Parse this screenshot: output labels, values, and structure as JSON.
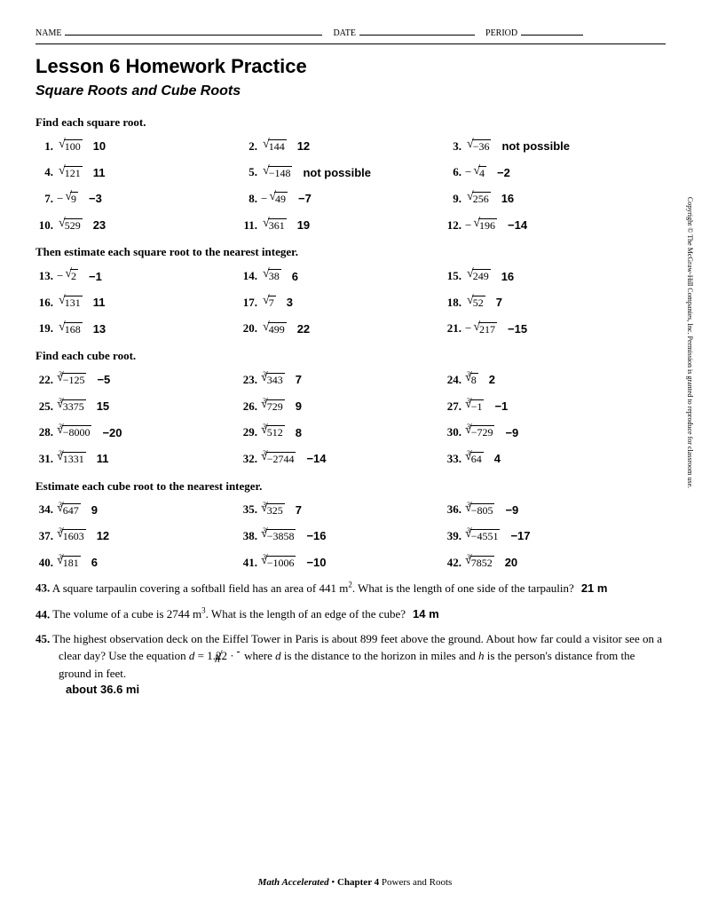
{
  "header": {
    "name": "NAME",
    "date": "DATE",
    "period": "PERIOD"
  },
  "title": "Lesson 6 Homework Practice",
  "subtitle": "Square Roots and Cube Roots",
  "sections": [
    {
      "head": "Find each square root.",
      "items": [
        {
          "n": "1.",
          "pre": "",
          "idx": "",
          "arg": "100",
          "ans": "10"
        },
        {
          "n": "2.",
          "pre": "",
          "idx": "",
          "arg": "144",
          "ans": "12"
        },
        {
          "n": "3.",
          "pre": "",
          "idx": "",
          "arg": "−36",
          "ans": "not possible"
        },
        {
          "n": "4.",
          "pre": "",
          "idx": "",
          "arg": "121",
          "ans": "11"
        },
        {
          "n": "5.",
          "pre": "",
          "idx": "",
          "arg": "−148",
          "ans": "not possible"
        },
        {
          "n": "6.",
          "pre": "−",
          "idx": "",
          "arg": "4",
          "ans": "−2"
        },
        {
          "n": "7.",
          "pre": "−",
          "idx": "",
          "arg": "9",
          "ans": "−3"
        },
        {
          "n": "8.",
          "pre": "−",
          "idx": "",
          "arg": "49",
          "ans": "−7"
        },
        {
          "n": "9.",
          "pre": "",
          "idx": "",
          "arg": "256",
          "ans": "16"
        },
        {
          "n": "10.",
          "pre": "",
          "idx": "",
          "arg": "529",
          "ans": "23"
        },
        {
          "n": "11.",
          "pre": "",
          "idx": "",
          "arg": "361",
          "ans": "19"
        },
        {
          "n": "12.",
          "pre": "−",
          "idx": "",
          "arg": "196",
          "ans": "−14"
        }
      ]
    },
    {
      "head": "Then estimate each square root to the nearest integer.",
      "items": [
        {
          "n": "13.",
          "pre": "−",
          "idx": "",
          "arg": "2",
          "ans": "−1"
        },
        {
          "n": "14.",
          "pre": "",
          "idx": "",
          "arg": "38",
          "ans": "6"
        },
        {
          "n": "15.",
          "pre": "",
          "idx": "",
          "arg": "249",
          "ans": "16"
        },
        {
          "n": "16.",
          "pre": "",
          "idx": "",
          "arg": "131",
          "ans": "11"
        },
        {
          "n": "17.",
          "pre": "",
          "idx": "",
          "arg": "7",
          "ans": "3"
        },
        {
          "n": "18.",
          "pre": "",
          "idx": "",
          "arg": "52",
          "ans": "7"
        },
        {
          "n": "19.",
          "pre": "",
          "idx": "",
          "arg": "168",
          "ans": "13"
        },
        {
          "n": "20.",
          "pre": "",
          "idx": "",
          "arg": "499",
          "ans": "22"
        },
        {
          "n": "21.",
          "pre": "−",
          "idx": "",
          "arg": "217",
          "ans": "−15"
        }
      ]
    },
    {
      "head": "Find each cube root.",
      "items": [
        {
          "n": "22.",
          "pre": "",
          "idx": "3",
          "arg": "−125",
          "ans": "−5"
        },
        {
          "n": "23.",
          "pre": "",
          "idx": "3",
          "arg": "343",
          "ans": "7"
        },
        {
          "n": "24.",
          "pre": "",
          "idx": "3",
          "arg": "8",
          "ans": "2"
        },
        {
          "n": "25.",
          "pre": "",
          "idx": "3",
          "arg": "3375",
          "ans": "15"
        },
        {
          "n": "26.",
          "pre": "",
          "idx": "3",
          "arg": "729",
          "ans": "9"
        },
        {
          "n": "27.",
          "pre": "",
          "idx": "3",
          "arg": "−1",
          "ans": "−1"
        },
        {
          "n": "28.",
          "pre": "",
          "idx": "3",
          "arg": "−8000",
          "ans": "−20"
        },
        {
          "n": "29.",
          "pre": "",
          "idx": "3",
          "arg": "512",
          "ans": "8"
        },
        {
          "n": "30.",
          "pre": "",
          "idx": "3",
          "arg": "−729",
          "ans": "−9"
        },
        {
          "n": "31.",
          "pre": "",
          "idx": "3",
          "arg": "1331",
          "ans": "11"
        },
        {
          "n": "32.",
          "pre": "",
          "idx": "3",
          "arg": "−2744",
          "ans": "−14"
        },
        {
          "n": "33.",
          "pre": "",
          "idx": "3",
          "arg": "64",
          "ans": "4"
        }
      ]
    },
    {
      "head": "Estimate each cube root to the nearest integer.",
      "items": [
        {
          "n": "34.",
          "pre": "",
          "idx": "3",
          "arg": "647",
          "ans": "9"
        },
        {
          "n": "35.",
          "pre": "",
          "idx": "3",
          "arg": "325",
          "ans": "7"
        },
        {
          "n": "36.",
          "pre": "",
          "idx": "3",
          "arg": "−805",
          "ans": "−9"
        },
        {
          "n": "37.",
          "pre": "",
          "idx": "3",
          "arg": "1603",
          "ans": "12"
        },
        {
          "n": "38.",
          "pre": "",
          "idx": "3",
          "arg": "−3858",
          "ans": "−16"
        },
        {
          "n": "39.",
          "pre": "",
          "idx": "3",
          "arg": "−4551",
          "ans": "−17"
        },
        {
          "n": "40.",
          "pre": "",
          "idx": "3",
          "arg": "181",
          "ans": "6"
        },
        {
          "n": "41.",
          "pre": "",
          "idx": "3",
          "arg": "−1006",
          "ans": "−10"
        },
        {
          "n": "42.",
          "pre": "",
          "idx": "3",
          "arg": "7852",
          "ans": "20"
        }
      ]
    }
  ],
  "word_problems": [
    {
      "n": "43.",
      "html": "A square tarpaulin covering a softball field has an area of 441 m<sup>2</sup>. What is the length of one side of the tarpaulin?",
      "ans": "21 m"
    },
    {
      "n": "44.",
      "html": "The volume of a cube is 2744 m<sup>3</sup>. What is the length of an edge of the cube?",
      "ans": "14 m"
    },
    {
      "n": "45.",
      "html": "The highest observation deck on the Eiffel Tower in Paris is about 899 feet above the ground. About how far could a visitor see on a clear day? Use the equation <i>d</i> = 1.22 · <span class='rad'><span class='sym'>√</span><span class='arg'><i>h</i></span></span> where <i>d</i> is the distance to the horizon in miles and <i>h</i> is the person's distance from the ground in feet.<br>",
      "ans": "about 36.6 mi"
    }
  ],
  "footer": {
    "book": "Math Accelerated",
    "sep": " • ",
    "chapter": "Chapter 4 ",
    "topic": "Powers and Roots"
  },
  "copyright": "Copyright © The McGraw-Hill Companies, Inc. Permission is granted to reproduce for classroom use."
}
